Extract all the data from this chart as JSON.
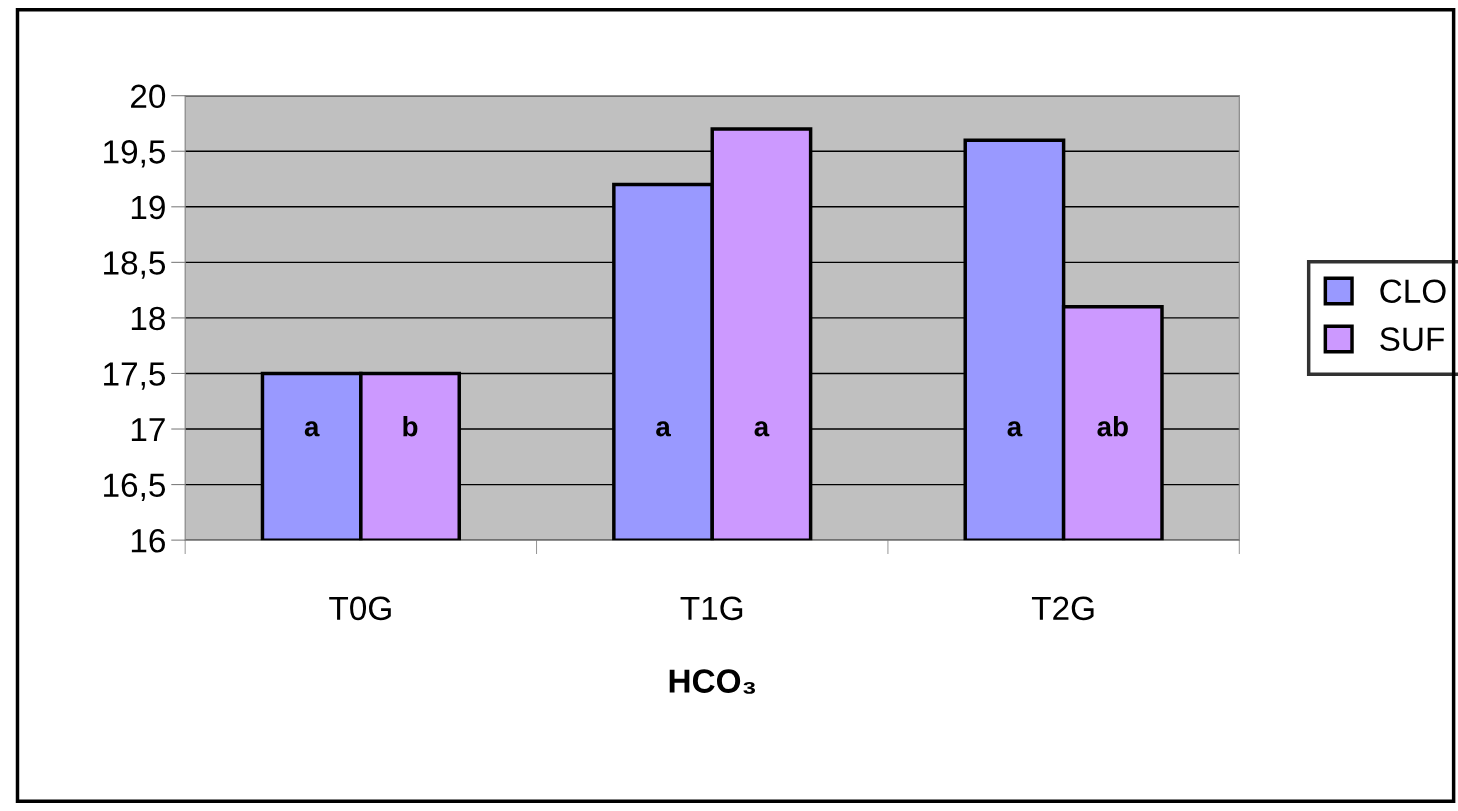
{
  "chart_data": {
    "type": "bar",
    "xlabel": "HCO₃",
    "categories": [
      "T0G",
      "T1G",
      "T2G"
    ],
    "series": [
      {
        "name": "CLO",
        "color": "#9999ff",
        "values": [
          17.5,
          19.2,
          19.6
        ],
        "value_labels": [
          "a",
          "a",
          "a"
        ]
      },
      {
        "name": "SUF",
        "color": "#cc99ff",
        "values": [
          17.5,
          19.7,
          18.1
        ],
        "value_labels": [
          "b",
          "a",
          "ab"
        ]
      }
    ],
    "ylim": [
      16,
      20
    ],
    "yticks": [
      16,
      {
        "value": 16.5,
        "label": "16,5"
      },
      17,
      {
        "value": 17.5,
        "label": "17,5"
      },
      18,
      {
        "value": 18.5,
        "label": "18,5"
      },
      19,
      {
        "value": 19.5,
        "label": "19,5"
      },
      20
    ],
    "grid": "y",
    "legend": "right"
  }
}
